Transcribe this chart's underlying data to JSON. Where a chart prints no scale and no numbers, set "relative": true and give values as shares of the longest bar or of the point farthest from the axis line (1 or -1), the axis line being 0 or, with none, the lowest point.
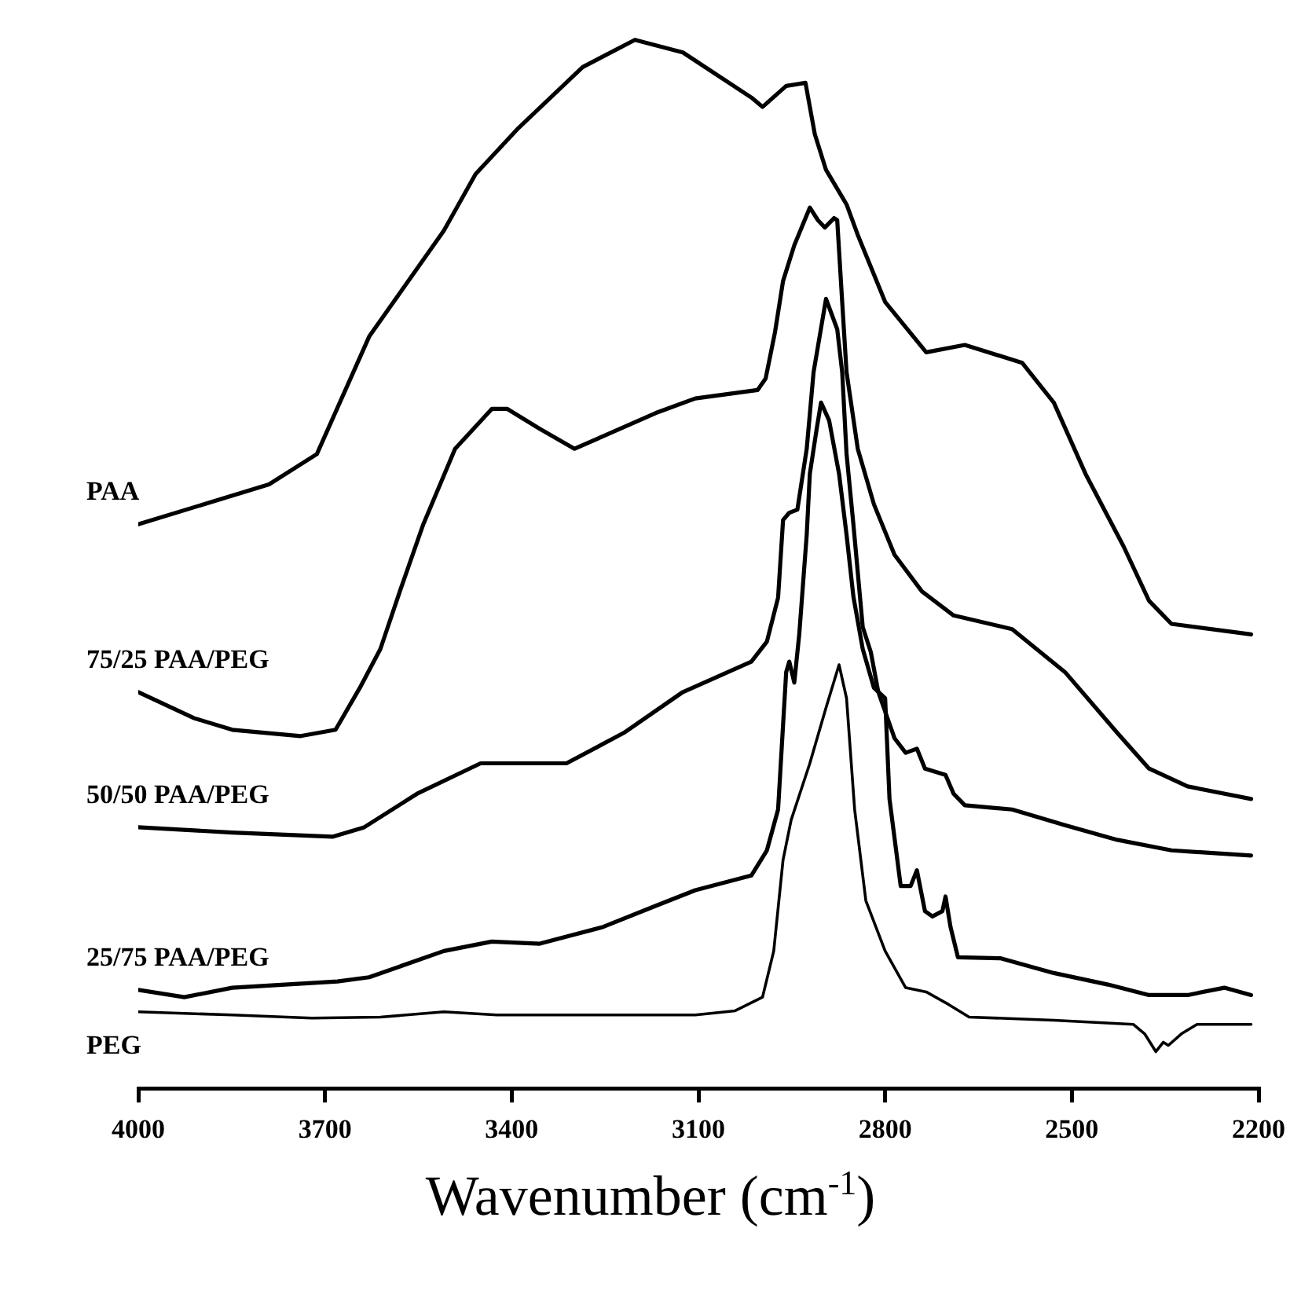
{
  "chart_data": {
    "type": "line",
    "xlabel": "Wavenumber (cm$^{-1}$)",
    "relative": true,
    "tick_labels": "x",
    "grid": false,
    "legend": false,
    "marker": "none",
    "line_style": "solid",
    "xlim": [
      4000,
      2200
    ],
    "xticks": [
      4000,
      3700,
      3400,
      3100,
      2800,
      2500,
      2200
    ],
    "series": [
      {
        "name": "PAA",
        "color": "#000000",
        "x": [
          4000,
          3790,
          3713,
          3662,
          3629,
          3578,
          3509,
          3458,
          3389,
          3286,
          3202,
          3125,
          3015,
          2997,
          2959,
          2928,
          2913,
          2895,
          2862,
          2844,
          2800,
          2734,
          2672,
          2580,
          2529,
          2478,
          2417,
          2376,
          2340,
          2212
        ],
        "values": [
          0.538,
          0.576,
          0.605,
          0.673,
          0.717,
          0.76,
          0.818,
          0.872,
          0.916,
          0.974,
          1.0,
          0.988,
          0.945,
          0.936,
          0.956,
          0.959,
          0.91,
          0.876,
          0.843,
          0.814,
          0.75,
          0.702,
          0.709,
          0.692,
          0.654,
          0.586,
          0.517,
          0.465,
          0.443,
          0.433
        ]
      },
      {
        "name": "75/25 PAA/PEG",
        "color": "#000000",
        "x": [
          4000,
          3910,
          3849,
          3739,
          3683,
          3644,
          3611,
          3578,
          3542,
          3491,
          3432,
          3407,
          3355,
          3299,
          3253,
          3169,
          3105,
          3005,
          2992,
          2977,
          2964,
          2946,
          2921,
          2908,
          2897,
          2882,
          2877,
          2869,
          2862,
          2844,
          2818,
          2785,
          2741,
          2690,
          2596,
          2511,
          2427,
          2376,
          2314,
          2212
        ],
        "values": [
          0.378,
          0.353,
          0.342,
          0.336,
          0.342,
          0.382,
          0.419,
          0.477,
          0.538,
          0.61,
          0.648,
          0.648,
          0.629,
          0.61,
          0.622,
          0.644,
          0.658,
          0.666,
          0.677,
          0.721,
          0.77,
          0.804,
          0.84,
          0.828,
          0.821,
          0.83,
          0.828,
          0.75,
          0.683,
          0.61,
          0.557,
          0.509,
          0.474,
          0.451,
          0.438,
          0.397,
          0.339,
          0.305,
          0.288,
          0.276
        ]
      },
      {
        "name": "50/50 PAA/PEG",
        "color": "#000000",
        "x": [
          4000,
          3849,
          3688,
          3637,
          3552,
          3450,
          3407,
          3312,
          3220,
          3125,
          3015,
          2990,
          2972,
          2964,
          2954,
          2941,
          2926,
          2915,
          2895,
          2877,
          2869,
          2862,
          2851,
          2836,
          2823,
          2811,
          2785,
          2767,
          2749,
          2736,
          2703,
          2690,
          2672,
          2596,
          2511,
          2427,
          2340,
          2212
        ],
        "values": [
          0.249,
          0.244,
          0.24,
          0.249,
          0.281,
          0.31,
          0.31,
          0.31,
          0.339,
          0.378,
          0.407,
          0.426,
          0.468,
          0.542,
          0.549,
          0.552,
          0.61,
          0.683,
          0.753,
          0.724,
          0.683,
          0.605,
          0.538,
          0.44,
          0.416,
          0.378,
          0.334,
          0.32,
          0.324,
          0.305,
          0.299,
          0.281,
          0.27,
          0.266,
          0.251,
          0.237,
          0.227,
          0.222
        ]
      },
      {
        "name": "25/75 PAA/PEG",
        "color": "#000000",
        "x": [
          4000,
          3926,
          3849,
          3680,
          3629,
          3509,
          3432,
          3355,
          3253,
          3169,
          3105,
          3015,
          2990,
          2972,
          2959,
          2954,
          2946,
          2938,
          2926,
          2921,
          2910,
          2903,
          2890,
          2874,
          2862,
          2851,
          2836,
          2818,
          2800,
          2793,
          2775,
          2759,
          2749,
          2736,
          2724,
          2708,
          2703,
          2695,
          2683,
          2614,
          2529,
          2442,
          2376,
          2314,
          2255,
          2212
        ],
        "values": [
          0.094,
          0.087,
          0.096,
          0.102,
          0.106,
          0.131,
          0.14,
          0.138,
          0.154,
          0.174,
          0.189,
          0.203,
          0.227,
          0.266,
          0.397,
          0.407,
          0.387,
          0.433,
          0.528,
          0.586,
          0.629,
          0.654,
          0.637,
          0.586,
          0.528,
          0.469,
          0.419,
          0.382,
          0.372,
          0.276,
          0.193,
          0.193,
          0.208,
          0.169,
          0.164,
          0.169,
          0.183,
          0.154,
          0.125,
          0.124,
          0.11,
          0.099,
          0.089,
          0.089,
          0.096,
          0.089
        ]
      },
      {
        "name": "PEG",
        "color": "#000000",
        "x": [
          4000,
          3849,
          3721,
          3611,
          3509,
          3424,
          3105,
          3041,
          2997,
          2979,
          2964,
          2951,
          2921,
          2895,
          2874,
          2862,
          2849,
          2831,
          2800,
          2767,
          2734,
          2698,
          2665,
          2529,
          2401,
          2383,
          2365,
          2353,
          2345,
          2324,
          2299,
          2212
        ],
        "values": [
          0.073,
          0.07,
          0.067,
          0.068,
          0.073,
          0.07,
          0.07,
          0.074,
          0.087,
          0.131,
          0.218,
          0.256,
          0.31,
          0.363,
          0.404,
          0.372,
          0.266,
          0.179,
          0.131,
          0.096,
          0.092,
          0.08,
          0.068,
          0.065,
          0.061,
          0.052,
          0.035,
          0.044,
          0.041,
          0.052,
          0.061,
          0.061
        ]
      }
    ]
  }
}
